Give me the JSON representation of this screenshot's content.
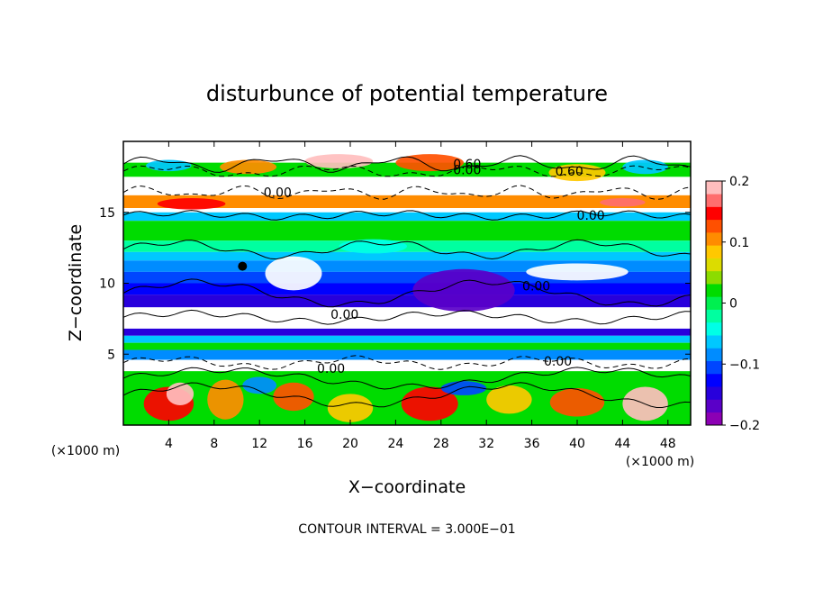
{
  "chart_data": {
    "type": "heatmap",
    "title": "disturbunce of potential temperature",
    "xlabel": "X−coordinate",
    "ylabel": "Z−coordinate",
    "x_unit_label": "(×1000 m)",
    "y_unit_label": "(×1000 m)",
    "xlim": [
      0,
      50
    ],
    "ylim": [
      0,
      20
    ],
    "x_ticks": [
      4,
      8,
      12,
      16,
      20,
      24,
      28,
      32,
      36,
      40,
      44,
      48
    ],
    "y_ticks": [
      5,
      10,
      15
    ],
    "colorbar": {
      "range": [
        -0.2,
        0.2
      ],
      "tick_labels": [
        {
          "value": 0.2,
          "label": "0.2"
        },
        {
          "value": 0.1,
          "label": "0.1"
        },
        {
          "value": 0.0,
          "label": "0"
        },
        {
          "value": -0.1,
          "label": "−0.1"
        },
        {
          "value": -0.2,
          "label": "−0.2"
        }
      ],
      "colors": [
        "#8c00b4",
        "#5a00c8",
        "#2800dc",
        "#0000ff",
        "#0046ff",
        "#008cff",
        "#00c8ff",
        "#00ffe6",
        "#00ffa0",
        "#00f050",
        "#00dc00",
        "#8cdc00",
        "#dcdc00",
        "#ffc800",
        "#ff8c00",
        "#ff5000",
        "#ff0000",
        "#ff6e6e",
        "#ffbebe"
      ]
    },
    "contour_labels": [
      {
        "text": "0.60",
        "x": 30.3,
        "z": 18.4
      },
      {
        "text": "0.00",
        "x": 30.3,
        "z": 18.0
      },
      {
        "text": "0.60",
        "x": 39.3,
        "z": 17.9
      },
      {
        "text": "0.00",
        "x": 13.6,
        "z": 16.4
      },
      {
        "text": "0.00",
        "x": 41.2,
        "z": 14.8
      },
      {
        "text": "0.00",
        "x": 19.5,
        "z": 7.8
      },
      {
        "text": "0.00",
        "x": 36.4,
        "z": 9.8
      },
      {
        "text": "0.00",
        "x": 18.3,
        "z": 4.0
      },
      {
        "text": "0.00",
        "x": 38.3,
        "z": 4.5
      }
    ],
    "footer": "CONTOUR INTERVAL = 3.000E−01"
  }
}
